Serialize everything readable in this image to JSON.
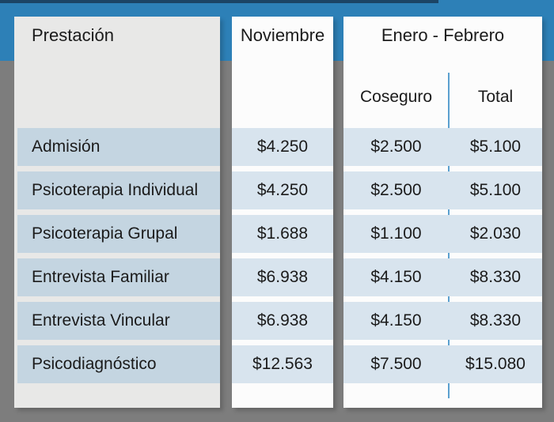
{
  "colors": {
    "background": "#7d7d7d",
    "top_strip": "#1c4465",
    "band_blue": "#2d80b7",
    "left_card": "#e8e8e7",
    "white_card": "#fcfcfc",
    "row_label_band": "#c4d5e1",
    "row_value_band": "#d8e4ee",
    "divider_line": "#5ba0cf",
    "text": "#1b1b1b"
  },
  "header": {
    "col_service": "Prestación",
    "col_november": "Noviembre",
    "col_period": "Enero - Febrero",
    "sub_coseguro": "Coseguro",
    "sub_total": "Total"
  },
  "rows": [
    {
      "label": "Admisión",
      "noviembre": "$4.250",
      "coseguro": "$2.500",
      "total": "$5.100"
    },
    {
      "label": "Psicoterapia Individual",
      "noviembre": "$4.250",
      "coseguro": "$2.500",
      "total": "$5.100"
    },
    {
      "label": "Psicoterapia Grupal",
      "noviembre": "$1.688",
      "coseguro": "$1.100",
      "total": "$2.030"
    },
    {
      "label": "Entrevista Familiar",
      "noviembre": "$6.938",
      "coseguro": "$4.150",
      "total": "$8.330"
    },
    {
      "label": "Entrevista Vincular",
      "noviembre": "$6.938",
      "coseguro": "$4.150",
      "total": "$8.330"
    },
    {
      "label": "Psicodiagnóstico",
      "noviembre": "$12.563",
      "coseguro": "$7.500",
      "total": "$15.080"
    }
  ],
  "chart_data": {
    "type": "table",
    "title": "",
    "columns": [
      "Prestación",
      "Noviembre",
      "Enero - Febrero / Coseguro",
      "Enero - Febrero / Total"
    ],
    "rows": [
      [
        "Admisión",
        "$4.250",
        "$2.500",
        "$5.100"
      ],
      [
        "Psicoterapia Individual",
        "$4.250",
        "$2.500",
        "$5.100"
      ],
      [
        "Psicoterapia Grupal",
        "$1.688",
        "$1.100",
        "$2.030"
      ],
      [
        "Entrevista Familiar",
        "$6.938",
        "$4.150",
        "$8.330"
      ],
      [
        "Entrevista Vincular",
        "$6.938",
        "$4.150",
        "$8.330"
      ],
      [
        "Psicodiagnóstico",
        "$12.563",
        "$7.500",
        "$15.080"
      ]
    ]
  }
}
